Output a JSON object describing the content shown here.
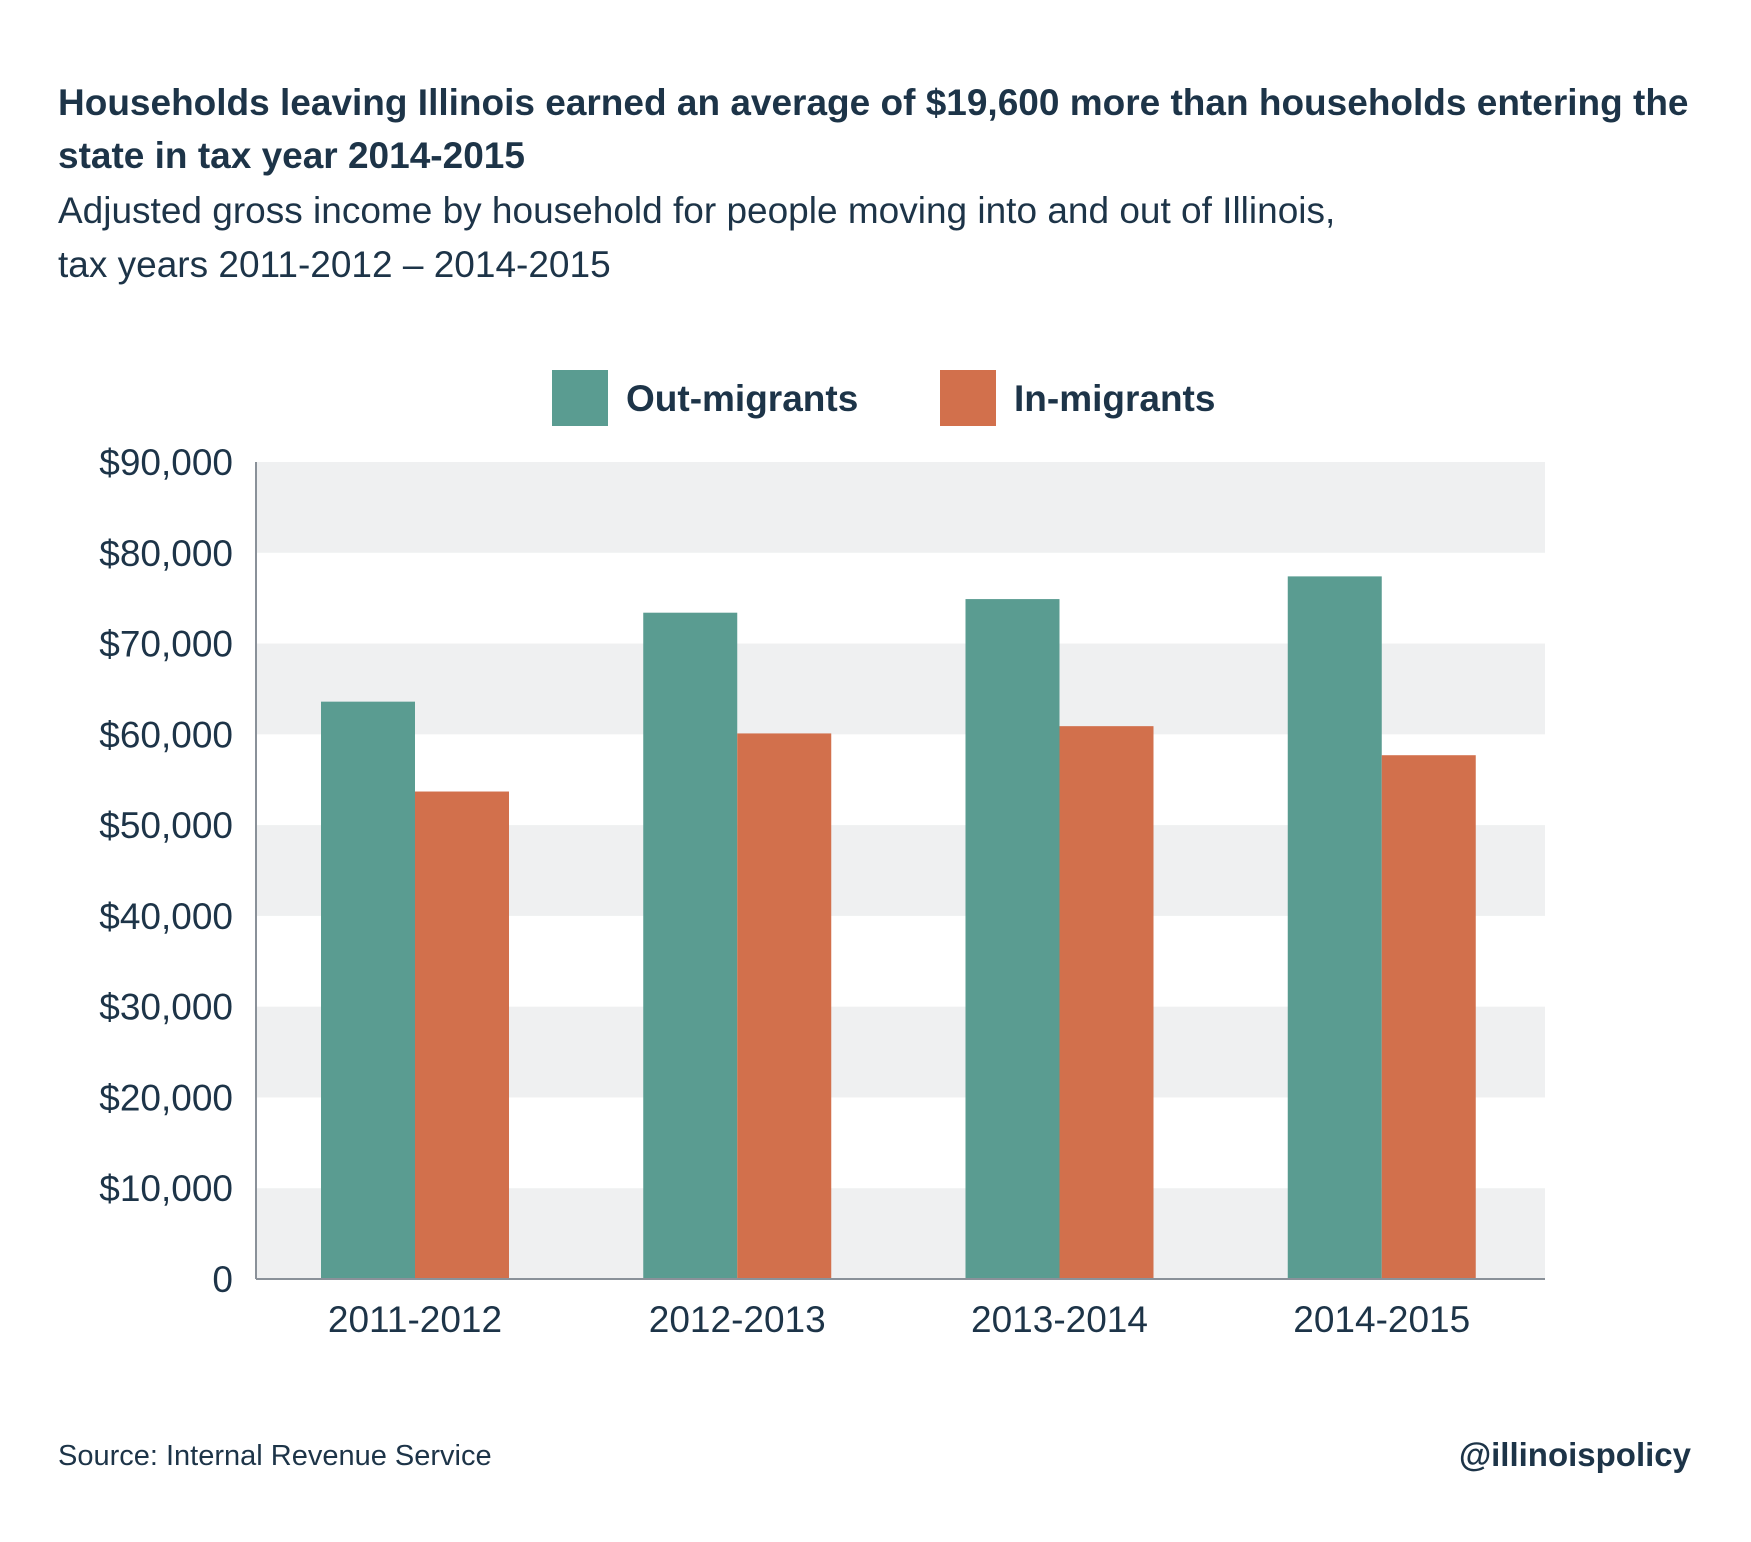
{
  "header": {
    "title": "Households leaving Illinois earned an average of $19,600 more than households entering the state in tax year 2014-2015",
    "subtitle_line1": "Adjusted gross income by household for people moving into and out of Illinois,",
    "subtitle_line2": "tax years 2011-2012 – 2014-2015"
  },
  "footer": {
    "source": "Source: Internal Revenue Service",
    "handle": "@illinoispolicy"
  },
  "colors": {
    "out_migrants": "#5a9c91",
    "in_migrants": "#d2704c",
    "band": "#eff0f1",
    "axis": "#8a9199",
    "text": "#1d3448"
  },
  "chart_data": {
    "type": "bar",
    "categories": [
      "2011-2012",
      "2012-2013",
      "2013-2014",
      "2014-2015"
    ],
    "series": [
      {
        "name": "Out-migrants",
        "values": [
          63600,
          73400,
          74900,
          77400
        ]
      },
      {
        "name": "In-migrants",
        "values": [
          53700,
          60100,
          60900,
          57700
        ]
      }
    ],
    "ylim": [
      0,
      90000
    ],
    "yticks": [
      0,
      10000,
      20000,
      30000,
      40000,
      50000,
      60000,
      70000,
      80000,
      90000
    ],
    "ytick_labels": [
      "0",
      "$10,000",
      "$20,000",
      "$30,000",
      "$40,000",
      "$50,000",
      "$60,000",
      "$70,000",
      "$80,000",
      "$90,000"
    ],
    "legend": "top-center",
    "grid": "alternating horizontal bands"
  }
}
